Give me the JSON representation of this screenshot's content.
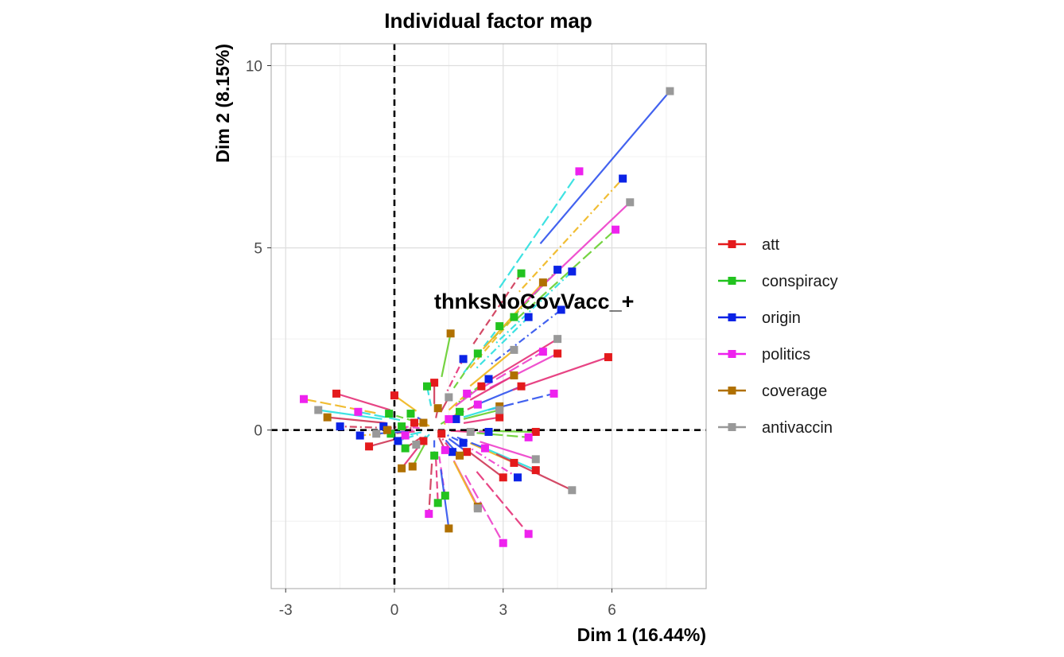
{
  "chart_data": {
    "type": "scatter",
    "title": "Individual factor map",
    "xlabel": "Dim 1 (16.44%)",
    "ylabel": "Dim 2 (8.15%)",
    "xlim": [
      -3.4,
      8.6
    ],
    "ylim": [
      -4.35,
      10.6
    ],
    "x_ticks": [
      -3,
      0,
      3,
      6
    ],
    "y_ticks": [
      0,
      5,
      10
    ],
    "grid": true,
    "reference_lines": {
      "x": 0,
      "y": 0
    },
    "legend_position": "right",
    "annotation": {
      "text": "thnksNoCovVacc_+",
      "x": 1.1,
      "y": 3.5
    },
    "series": [
      {
        "name": "att",
        "color": "#e41a1c",
        "line": "solid",
        "points": [
          [
            -1.6,
            1.0
          ],
          [
            -0.7,
            -0.45
          ],
          [
            0,
            0.95
          ],
          [
            0.8,
            -0.3
          ],
          [
            1.3,
            -0.1
          ],
          [
            2.0,
            -0.6
          ],
          [
            2.4,
            1.2
          ],
          [
            2.9,
            0.35
          ],
          [
            3.0,
            -1.3
          ],
          [
            3.3,
            -0.9
          ],
          [
            3.9,
            -1.1
          ],
          [
            3.9,
            -0.05
          ],
          [
            3.5,
            1.2
          ],
          [
            4.5,
            2.1
          ],
          [
            5.9,
            2.0
          ],
          [
            1.1,
            1.3
          ],
          [
            0.55,
            0.2
          ]
        ]
      },
      {
        "name": "conspiracy",
        "color": "#22c31f",
        "line": "dashed",
        "points": [
          [
            3.5,
            4.3
          ],
          [
            3.3,
            3.1
          ],
          [
            2.9,
            2.85
          ],
          [
            -0.15,
            0.45
          ],
          [
            0.45,
            0.45
          ],
          [
            1.4,
            -1.8
          ],
          [
            1.2,
            -2.0
          ],
          [
            0.3,
            -0.5
          ],
          [
            1.8,
            0.5
          ],
          [
            0.9,
            1.2
          ],
          [
            2.3,
            2.1
          ],
          [
            1.1,
            -0.7
          ],
          [
            0.2,
            0.1
          ],
          [
            -0.1,
            -0.1
          ]
        ]
      },
      {
        "name": "origin",
        "color": "#0b23e6",
        "line": "dotdash",
        "points": [
          [
            6.3,
            6.9
          ],
          [
            4.9,
            4.35
          ],
          [
            4.5,
            4.4
          ],
          [
            4.6,
            3.3
          ],
          [
            3.4,
            -1.3
          ],
          [
            1.9,
            1.95
          ],
          [
            -1.5,
            0.1
          ],
          [
            -0.95,
            -0.15
          ],
          [
            0.1,
            -0.3
          ],
          [
            2.6,
            1.4
          ],
          [
            1.9,
            -0.35
          ],
          [
            2.6,
            -0.05
          ],
          [
            1.6,
            -0.6
          ],
          [
            -0.3,
            0.1
          ],
          [
            1.7,
            0.3
          ],
          [
            3.7,
            3.1
          ]
        ]
      },
      {
        "name": "politics",
        "color": "#ee22ee",
        "line": "longdash",
        "points": [
          [
            5.1,
            7.1
          ],
          [
            6.1,
            5.5
          ],
          [
            4.4,
            1.0
          ],
          [
            3.0,
            -3.1
          ],
          [
            3.7,
            -2.85
          ],
          [
            0.95,
            -2.3
          ],
          [
            -2.5,
            0.85
          ],
          [
            -1.0,
            0.5
          ],
          [
            3.7,
            -0.2
          ],
          [
            2.5,
            -0.5
          ],
          [
            4.1,
            2.15
          ],
          [
            2.3,
            0.7
          ],
          [
            1.4,
            -0.55
          ],
          [
            2.0,
            1.0
          ],
          [
            0.3,
            -0.15
          ],
          [
            1.5,
            0.3
          ]
        ]
      },
      {
        "name": "coverage",
        "color": "#b07000",
        "line": "solid",
        "points": [
          [
            1.55,
            2.65
          ],
          [
            1.5,
            -2.7
          ],
          [
            2.3,
            -2.1
          ],
          [
            0.2,
            -1.05
          ],
          [
            -1.85,
            0.35
          ],
          [
            4.1,
            4.05
          ],
          [
            2.9,
            0.65
          ],
          [
            0.5,
            -1.0
          ],
          [
            1.8,
            -0.7
          ],
          [
            -0.2,
            0.0
          ],
          [
            3.3,
            1.5
          ],
          [
            1.2,
            0.6
          ],
          [
            0.8,
            0.2
          ]
        ]
      },
      {
        "name": "antivaccin",
        "color": "#999999",
        "line": "solid",
        "points": [
          [
            7.6,
            9.3
          ],
          [
            6.5,
            6.25
          ],
          [
            4.5,
            2.5
          ],
          [
            4.9,
            -1.65
          ],
          [
            2.3,
            -2.15
          ],
          [
            -2.1,
            0.55
          ],
          [
            2.9,
            0.55
          ],
          [
            -0.5,
            -0.1
          ],
          [
            3.9,
            -0.8
          ],
          [
            2.1,
            -0.05
          ],
          [
            1.5,
            0.9
          ],
          [
            3.3,
            2.2
          ],
          [
            0.6,
            -0.4
          ]
        ]
      }
    ],
    "line_palette": [
      "#e6357a",
      "#d03b5a",
      "#f0b822",
      "#2ee0e0",
      "#6ad032",
      "#3355ee",
      "#ee44cc"
    ]
  }
}
